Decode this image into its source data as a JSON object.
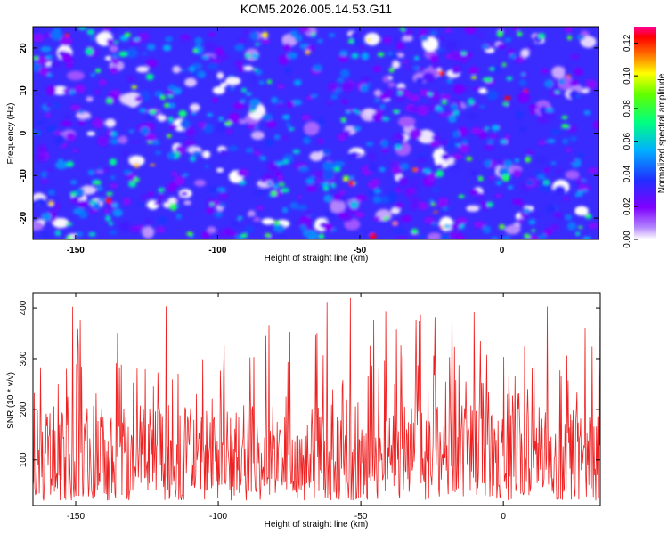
{
  "figure": {
    "title": "KOM5.2026.005.14.53.G11"
  },
  "chart_data": [
    {
      "type": "heatmap",
      "title": "KOM5.2026.005.14.53.G11",
      "xlabel": "Height of straight line (km)",
      "ylabel": "Frequency (Hz)",
      "xlim": [
        -165,
        34
      ],
      "ylim": [
        -25,
        25
      ],
      "x_ticks": [
        -150,
        -100,
        -50,
        0
      ],
      "x_tick_labels": [
        "-150",
        "-100",
        "-50",
        "0"
      ],
      "y_ticks": [
        -20,
        -10,
        0,
        10,
        20
      ],
      "y_tick_labels": [
        "-20",
        "-10",
        "0",
        "10",
        "20"
      ],
      "colorbar": {
        "label": "Normalized spectral amplitude",
        "range": [
          0,
          0.13
        ],
        "ticks": [
          0.0,
          0.02,
          0.04,
          0.06,
          0.08,
          0.1,
          0.12
        ],
        "tick_labels": [
          "0.00",
          "0.02",
          "0.04",
          "0.06",
          "0.08",
          "0.10",
          "0.12"
        ],
        "colormap": [
          "#ffffff",
          "#a000ff",
          "#2020ff",
          "#00c0ff",
          "#00ff60",
          "#ffff00",
          "#ff0000",
          "#ff0080"
        ]
      },
      "description_values": {
        "background_level": 0.02,
        "typical_peak": 0.06,
        "max_peak": 0.13
      }
    },
    {
      "type": "line",
      "title": "",
      "xlabel": "Height of straight line (km)",
      "ylabel": "SNR (10 * v/v)",
      "xlim": [
        -165,
        34
      ],
      "ylim": [
        10,
        430
      ],
      "x_ticks": [
        -150,
        -100,
        -50,
        0
      ],
      "x_tick_labels": [
        "-150",
        "-100",
        "-50",
        "0"
      ],
      "y_ticks": [
        100,
        200,
        300,
        400
      ],
      "y_tick_labels": [
        "100",
        "200",
        "300",
        "400"
      ],
      "series": [
        {
          "name": "SNR",
          "color": "#ee2222",
          "mean": 120,
          "min": 20,
          "max": 425
        }
      ]
    }
  ]
}
